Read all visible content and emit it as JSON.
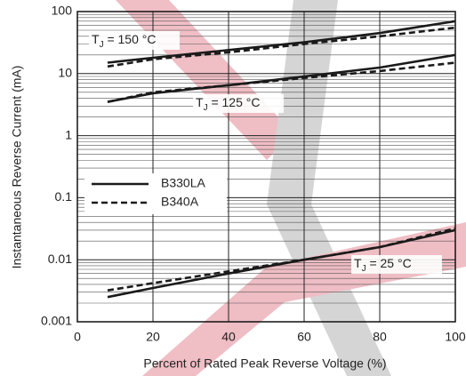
{
  "chart_data": {
    "type": "line",
    "xlabel": "Percent of Rated Peak Reverse Voltage (%)",
    "ylabel": "Instantaneous Reverse Current (mA)",
    "x": [
      8,
      20,
      40,
      60,
      80,
      100
    ],
    "series": [
      {
        "name": "B330LA",
        "color": "#1a1a1a",
        "dashed": false,
        "curves": [
          [
            15,
            18,
            24,
            32,
            45,
            70
          ],
          [
            3.5,
            4.8,
            6.5,
            9,
            12.5,
            20
          ],
          [
            0.0025,
            0.0035,
            0.006,
            0.01,
            0.016,
            0.03
          ]
        ]
      },
      {
        "name": "B340A",
        "color": "#1a1a1a",
        "dashed": true,
        "curves": [
          [
            13,
            17,
            22,
            30,
            40,
            55
          ],
          [
            3.5,
            5,
            6.5,
            8.5,
            11,
            15
          ],
          [
            0.0032,
            0.0042,
            0.0065,
            0.01,
            0.016,
            0.032
          ]
        ]
      }
    ],
    "annotations": [
      [
        "T",
        "J",
        " = 150 °C"
      ],
      [
        "T",
        "J",
        " = 125 °C"
      ],
      [
        "T",
        "J",
        " = 25 °C"
      ]
    ],
    "xlim": [
      0,
      100
    ],
    "xticks": [
      0,
      20,
      40,
      60,
      80,
      100
    ],
    "ylim": [
      0.001,
      100
    ],
    "yticks": [
      0.001,
      0.01,
      0.1,
      1,
      10,
      100
    ],
    "log_y": true,
    "grid": true,
    "minor_grid": true,
    "legend": "lower left"
  }
}
